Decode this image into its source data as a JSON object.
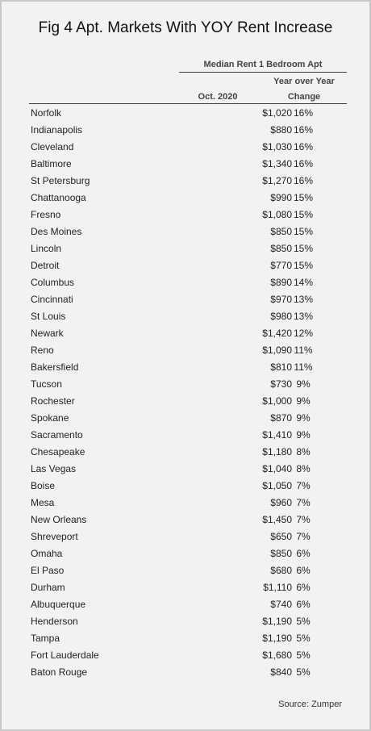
{
  "chart_data": {
    "type": "table",
    "title": "Fig 4  Apt. Markets With YOY Rent Increase",
    "group_header": "Median Rent 1 Bedroom Apt",
    "columns": {
      "rent_header": "Oct. 2020",
      "change_header_line1": "Year over Year",
      "change_header_line2": "Change"
    },
    "rows": [
      {
        "city": "Norfolk",
        "rent": "$1,020",
        "change": "16%"
      },
      {
        "city": "Indianapolis",
        "rent": "$880",
        "change": "16%"
      },
      {
        "city": "Cleveland",
        "rent": "$1,030",
        "change": "16%"
      },
      {
        "city": "Baltimore",
        "rent": "$1,340",
        "change": "16%"
      },
      {
        "city": "St Petersburg",
        "rent": "$1,270",
        "change": "16%"
      },
      {
        "city": "Chattanooga",
        "rent": "$990",
        "change": "15%"
      },
      {
        "city": "Fresno",
        "rent": "$1,080",
        "change": "15%"
      },
      {
        "city": "Des Moines",
        "rent": "$850",
        "change": "15%"
      },
      {
        "city": "Lincoln",
        "rent": "$850",
        "change": "15%"
      },
      {
        "city": "Detroit",
        "rent": "$770",
        "change": "15%"
      },
      {
        "city": "Columbus",
        "rent": "$890",
        "change": "14%"
      },
      {
        "city": "Cincinnati",
        "rent": "$970",
        "change": "13%"
      },
      {
        "city": "St Louis",
        "rent": "$980",
        "change": "13%"
      },
      {
        "city": "Newark",
        "rent": "$1,420",
        "change": "12%"
      },
      {
        "city": "Reno",
        "rent": "$1,090",
        "change": "11%"
      },
      {
        "city": "Bakersfield",
        "rent": "$810",
        "change": "11%"
      },
      {
        "city": "Tucson",
        "rent": "$730",
        "change": "9%"
      },
      {
        "city": "Rochester",
        "rent": "$1,000",
        "change": "9%"
      },
      {
        "city": "Spokane",
        "rent": "$870",
        "change": "9%"
      },
      {
        "city": "Sacramento",
        "rent": "$1,410",
        "change": "9%"
      },
      {
        "city": "Chesapeake",
        "rent": "$1,180",
        "change": "8%"
      },
      {
        "city": "Las Vegas",
        "rent": "$1,040",
        "change": "8%"
      },
      {
        "city": "Boise",
        "rent": "$1,050",
        "change": "7%"
      },
      {
        "city": "Mesa",
        "rent": "$960",
        "change": "7%"
      },
      {
        "city": "New Orleans",
        "rent": "$1,450",
        "change": "7%"
      },
      {
        "city": "Shreveport",
        "rent": "$650",
        "change": "7%"
      },
      {
        "city": "Omaha",
        "rent": "$850",
        "change": "6%"
      },
      {
        "city": "El Paso",
        "rent": "$680",
        "change": "6%"
      },
      {
        "city": "Durham",
        "rent": "$1,110",
        "change": "6%"
      },
      {
        "city": "Albuquerque",
        "rent": "$740",
        "change": "6%"
      },
      {
        "city": "Henderson",
        "rent": "$1,190",
        "change": "5%"
      },
      {
        "city": "Tampa",
        "rent": "$1,190",
        "change": "5%"
      },
      {
        "city": "Fort Lauderdale",
        "rent": "$1,680",
        "change": "5%"
      },
      {
        "city": "Baton Rouge",
        "rent": "$840",
        "change": "5%"
      }
    ],
    "source": "Source: Zumper"
  }
}
